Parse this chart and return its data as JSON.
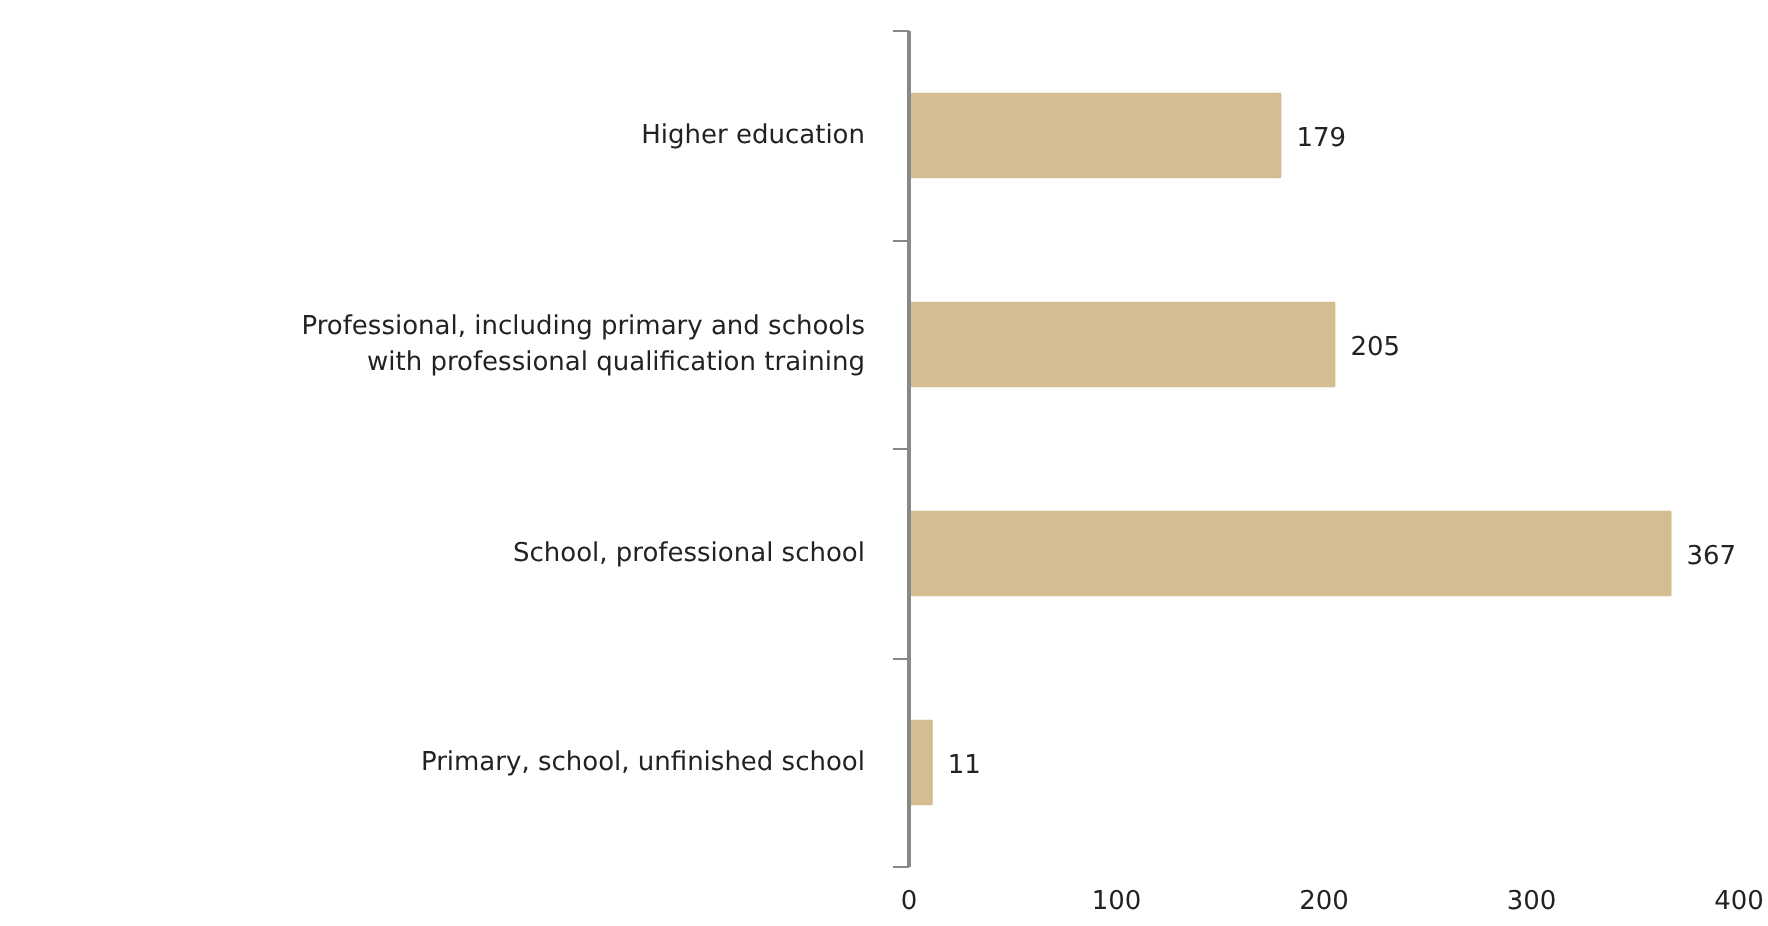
{
  "chart_data": {
    "type": "bar",
    "orientation": "horizontal",
    "categories": [
      "Higher education",
      "Professional, including primary and schools with professional qualification training",
      "School, professional school",
      "Primary, school, unfinished school"
    ],
    "values": [
      179,
      205,
      367,
      11
    ],
    "color": "#d4bd91",
    "xlim": [
      0,
      400
    ],
    "xticks": [
      0,
      100,
      200,
      300,
      400
    ],
    "data_labels": true,
    "grid": false
  }
}
